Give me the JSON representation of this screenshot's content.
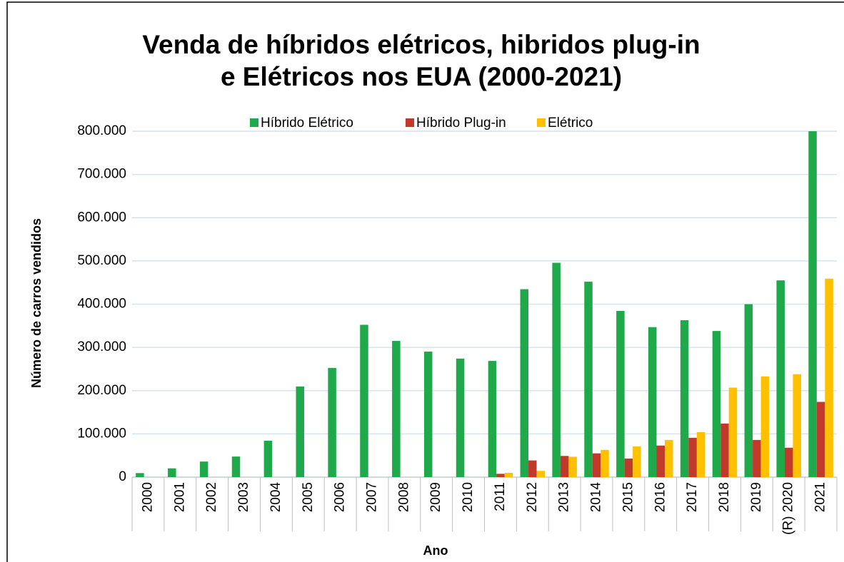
{
  "chart_data": {
    "type": "bar",
    "title": [
      "Venda de híbridos elétricos, hibridos plug-in",
      "e Elétricos nos EUA (2000-2021)"
    ],
    "x_label": "Ano",
    "y_label": "Número de carros vendidos",
    "categories": [
      "2000",
      "2001",
      "2002",
      "2003",
      "2004",
      "2005",
      "2006",
      "2007",
      "2008",
      "2009",
      "2010",
      "2011",
      "2012",
      "2013",
      "2014",
      "2015",
      "2016",
      "2017",
      "2018",
      "2019",
      "(R) 2020",
      "2021"
    ],
    "series": [
      {
        "name": "Híbrido Elétrico",
        "color": "#1fa94b",
        "values": [
          9350,
          20282,
          36035,
          47600,
          84199,
          209711,
          252636,
          352274,
          315000,
          290271,
          274210,
          268752,
          434645,
          495685,
          452172,
          384404,
          346949,
          362868,
          338000,
          400000,
          455000,
          800000
        ]
      },
      {
        "name": "Híbrido Plug-in",
        "color": "#c0392b",
        "values": [
          null,
          null,
          null,
          null,
          null,
          null,
          null,
          null,
          null,
          null,
          null,
          7700,
          38600,
          49000,
          55000,
          43000,
          73000,
          91000,
          124000,
          86000,
          68000,
          174000
        ]
      },
      {
        "name": "Elétrico",
        "color": "#ffc000",
        "values": [
          null,
          null,
          null,
          null,
          null,
          null,
          null,
          null,
          null,
          null,
          null,
          10000,
          14500,
          47000,
          63000,
          71000,
          86000,
          104000,
          207000,
          233000,
          238000,
          459000
        ]
      }
    ],
    "ylim": [
      0,
      800000
    ],
    "yticks": [
      0,
      {
        "value": 100000,
        "label": "100.000"
      },
      {
        "value": 200000,
        "label": "200.000"
      },
      {
        "value": 300000,
        "label": "300.000"
      },
      {
        "value": 400000,
        "label": "400.000"
      },
      {
        "value": 500000,
        "label": "500.000"
      },
      {
        "value": 600000,
        "label": "600.000"
      },
      {
        "value": 700000,
        "label": "700.000"
      },
      {
        "value": 800000,
        "label": "800.000"
      }
    ],
    "grid": true,
    "legend": "top"
  }
}
